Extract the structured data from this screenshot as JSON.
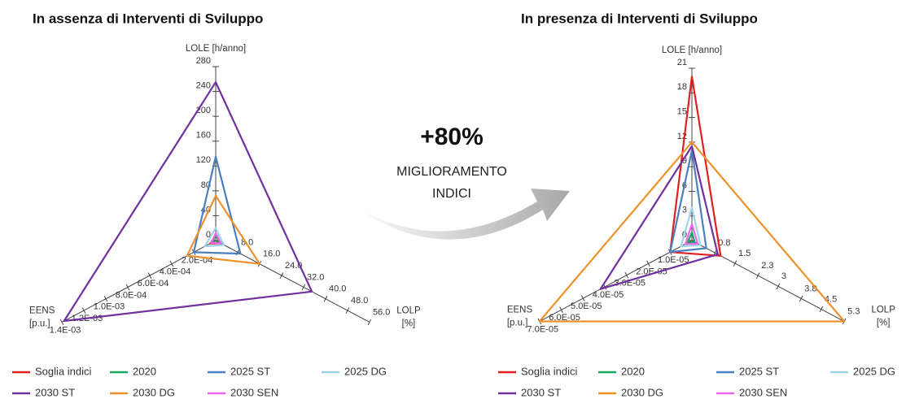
{
  "annotation": {
    "headline": "+80%",
    "lines": [
      "MIGLIORAMENTO",
      "INDICI"
    ]
  },
  "chart_data": [
    {
      "type": "radar",
      "title": "In assenza di Interventi di Sviluppo",
      "axes": [
        {
          "label": [
            "LOLE [h/anno]"
          ],
          "lim": [
            0,
            280
          ],
          "ticks": [
            0,
            40,
            80,
            120,
            160,
            200,
            240,
            280
          ]
        },
        {
          "label": [
            "LOLP",
            "[%]"
          ],
          "lim": [
            0,
            56
          ],
          "ticks": [
            {
              "value": 8,
              "label": "8.0"
            },
            {
              "value": 16,
              "label": "16.0"
            },
            {
              "value": 24,
              "label": "24.0"
            },
            {
              "value": 32,
              "label": "32.0"
            },
            {
              "value": 40,
              "label": "40.0"
            },
            {
              "value": 48,
              "label": "48.0"
            },
            {
              "value": 56,
              "label": "56.0"
            }
          ]
        },
        {
          "label": [
            "EENS",
            "[p.u.]"
          ],
          "lim": [
            0,
            0.0014
          ],
          "ticks": [
            {
              "value": 0.0002,
              "label": "2.0E-04"
            },
            {
              "value": 0.0004,
              "label": "4.0E-04"
            },
            {
              "value": 0.0006,
              "label": "6.0E-04"
            },
            {
              "value": 0.0008,
              "label": "8.0E-04"
            },
            {
              "value": 0.001,
              "label": "1.0E-03"
            },
            {
              "value": 0.0012,
              "label": "1.2E-03"
            },
            {
              "value": 0.0014,
              "label": "1.4E-03"
            }
          ]
        }
      ],
      "series": [
        {
          "name": "Soglia indici",
          "color": "#e02020",
          "values": [
            8,
            2,
            5e-05
          ]
        },
        {
          "name": "2020",
          "color": "#1aa866",
          "values": [
            10,
            1.5,
            3e-05
          ]
        },
        {
          "name": "2025 ST",
          "color": "#4a7fc0",
          "values": [
            135,
            9,
            0.0002
          ]
        },
        {
          "name": "2025 DG",
          "color": "#9fd4e8",
          "values": [
            20,
            3,
            0.0001
          ]
        },
        {
          "name": "2030 ST",
          "color": "#7030a0",
          "values": [
            255,
            35,
            0.00138
          ]
        },
        {
          "name": "2030 DG",
          "color": "#f0902a",
          "values": [
            72,
            16,
            0.00026
          ]
        },
        {
          "name": "2030 SEN",
          "color": "#ee66ee",
          "values": [
            12,
            2,
            4e-05
          ]
        }
      ]
    },
    {
      "type": "radar",
      "title": "In presenza di Interventi di Sviluppo",
      "axes": [
        {
          "label": [
            "LOLE [h/anno]"
          ],
          "lim": [
            0,
            21
          ],
          "ticks": [
            0,
            3,
            6,
            9,
            12,
            15,
            18,
            21
          ]
        },
        {
          "label": [
            "LOLP",
            "[%]"
          ],
          "lim": [
            0,
            5.3
          ],
          "ticks": [
            0.8,
            1.5,
            2.3,
            3,
            3.8,
            4.5,
            5.3
          ]
        },
        {
          "label": [
            "EENS",
            "[p.u.]"
          ],
          "lim": [
            0,
            7e-05
          ],
          "ticks": [
            {
              "value": 1e-05,
              "label": "1.0E-05"
            },
            {
              "value": 2e-05,
              "label": "2.0E-05"
            },
            {
              "value": 3e-05,
              "label": "3.0E-05"
            },
            {
              "value": 4e-05,
              "label": "4.0E-05"
            },
            {
              "value": 5e-05,
              "label": "5.0E-05"
            },
            {
              "value": 6e-05,
              "label": "6.0E-05"
            },
            {
              "value": 7e-05,
              "label": "7.0E-05"
            }
          ]
        }
      ],
      "series": [
        {
          "name": "Soglia indici",
          "color": "#e02020",
          "values": [
            20,
            1,
            1e-05
          ]
        },
        {
          "name": "2020",
          "color": "#1aa866",
          "values": [
            1,
            0.1,
            2e-06
          ]
        },
        {
          "name": "2025 ST",
          "color": "#4a7fc0",
          "values": [
            11,
            0.5,
            1e-05
          ]
        },
        {
          "name": "2025 DG",
          "color": "#9fd4e8",
          "values": [
            4,
            0.3,
            5e-06
          ]
        },
        {
          "name": "2030 ST",
          "color": "#7030a0",
          "values": [
            11.5,
            0.9,
            4.2e-05
          ]
        },
        {
          "name": "2030 DG",
          "color": "#f0902a",
          "values": [
            12,
            5.3,
            7e-05
          ]
        },
        {
          "name": "2030 SEN",
          "color": "#ee66ee",
          "values": [
            2,
            0.2,
            3e-06
          ]
        }
      ]
    }
  ]
}
